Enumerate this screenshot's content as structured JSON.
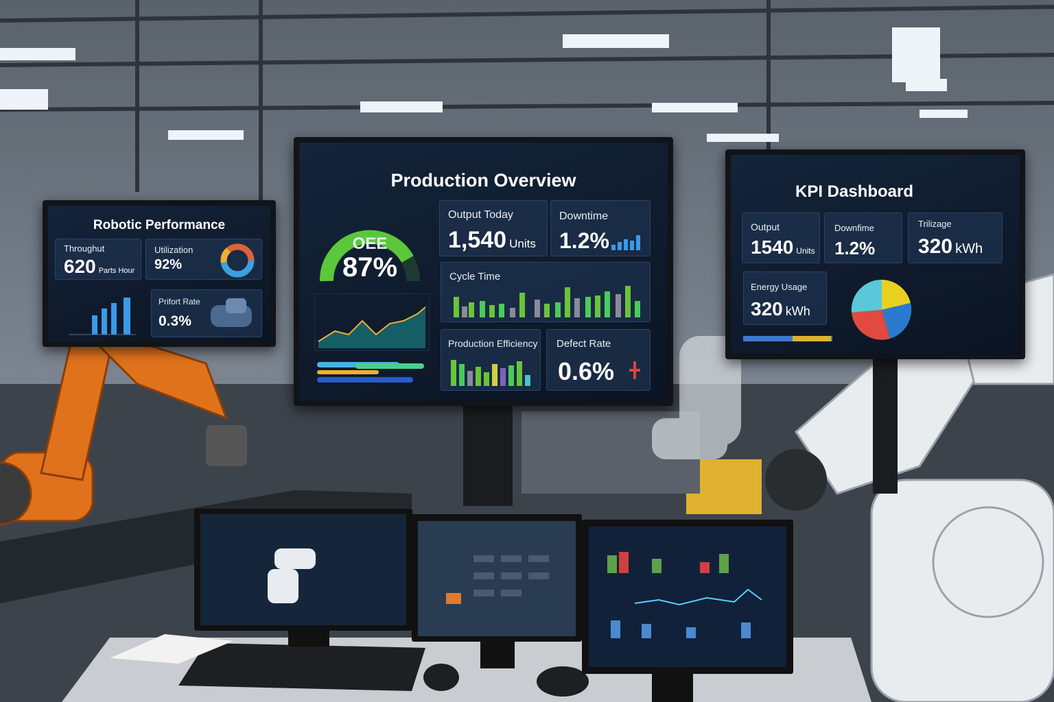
{
  "left_screen": {
    "title": "Robotic Performance",
    "tiles": [
      {
        "label": "Throughut",
        "value": "620",
        "unit": "Parts Hour"
      },
      {
        "label": "Utilization",
        "value": "92%"
      },
      {
        "label": "Prifort Rate",
        "value": "0.3%"
      }
    ]
  },
  "center_screen": {
    "title": "Production Overview",
    "gauge": {
      "label": "OEE",
      "value": "87%"
    },
    "tiles": [
      {
        "label": "Output Today",
        "value": "1,540",
        "unit": "Units"
      },
      {
        "label": "Downtime",
        "value": "1.2%"
      },
      {
        "label": "Cycle Time"
      },
      {
        "label": "Production Efficiency"
      },
      {
        "label": "Defect Rate",
        "value": "0.6%"
      }
    ]
  },
  "right_screen": {
    "title": "KPI Dashboard",
    "tiles": [
      {
        "label": "Output",
        "value": "1540",
        "unit": "Units"
      },
      {
        "label": "Downfime",
        "value": "1.2%"
      },
      {
        "label": "Trilizage",
        "value": "320",
        "unit": "kWh"
      },
      {
        "label": "Energy Usage",
        "value": "320",
        "unit": "kWh"
      }
    ]
  }
}
